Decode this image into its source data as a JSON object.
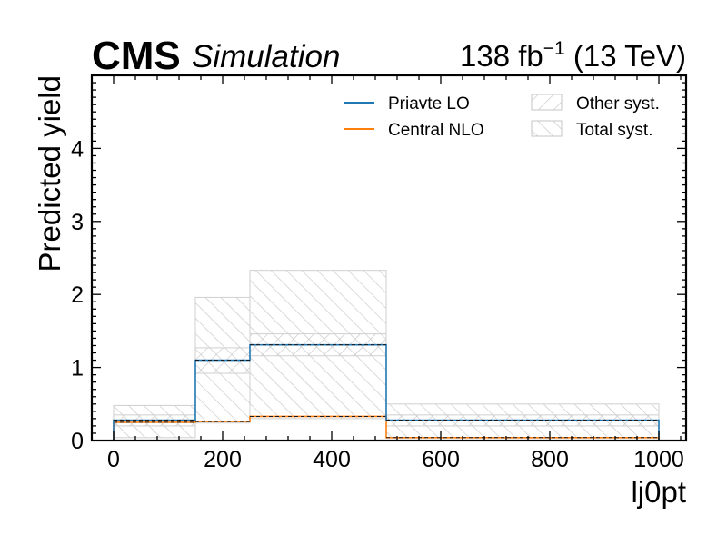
{
  "header": {
    "experiment": "CMS",
    "label": "Simulation",
    "lumi_value": "138 fb",
    "lumi_exponent": "−1",
    "energy": " (13 TeV)"
  },
  "chart_data": {
    "type": "step-histogram",
    "xlabel": "lj0pt",
    "ylabel": "Predicted yield",
    "xlim": [
      -40,
      1050
    ],
    "ylim": [
      0,
      5
    ],
    "x_ticks": [
      0,
      200,
      400,
      600,
      800,
      1000
    ],
    "y_ticks": [
      0,
      1,
      2,
      3,
      4
    ],
    "bin_edges": [
      0,
      150,
      250,
      500,
      1000
    ],
    "series": [
      {
        "name": "Priavte LO",
        "color": "#1f77b4",
        "values": [
          0.28,
          1.1,
          1.31,
          0.28
        ]
      },
      {
        "name": "Central NLO",
        "color": "#ff7f0e",
        "values": [
          0.25,
          0.26,
          0.33,
          0.04
        ]
      }
    ],
    "bands": [
      {
        "name": "Other syst.",
        "hatch": "forward",
        "around": "Priavte LO",
        "low": [
          0.2,
          0.92,
          1.16,
          0.2
        ],
        "high": [
          0.35,
          1.27,
          1.46,
          0.35
        ]
      },
      {
        "name": "Total syst.",
        "hatch": "backward",
        "around": "Priavte LO",
        "low": [
          0.04,
          0.24,
          0.3,
          0.04
        ],
        "high": [
          0.48,
          1.96,
          2.33,
          0.5
        ]
      }
    ],
    "legend_position": "top-right",
    "grid": false
  }
}
